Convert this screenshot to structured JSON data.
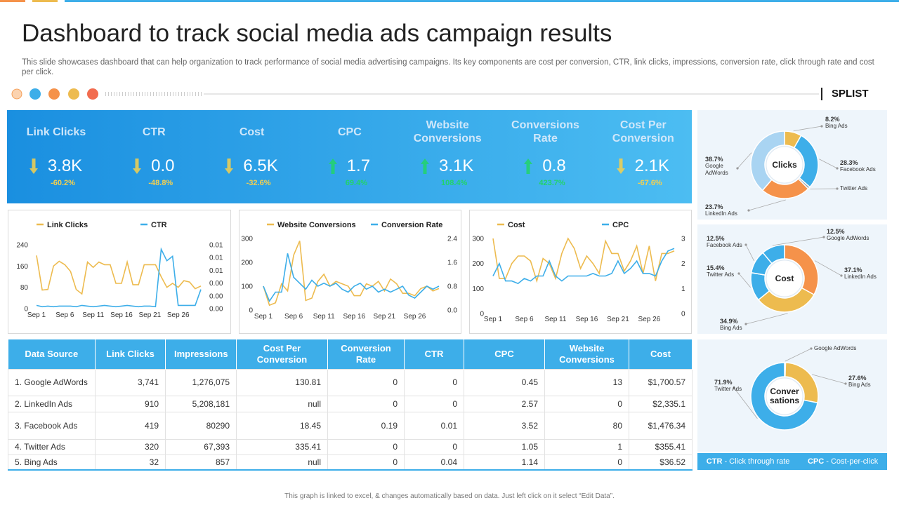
{
  "header": {
    "title": "Dashboard to track social media ads campaign results",
    "subtitle": "This slide showcases dashboard that can help organization to track performance of social media advertising campaigns. Its key components are cost per conversion, CTR, link clicks, impressions, conversion rate, click through rate and cost per click.",
    "brand": "SPLIST"
  },
  "kpis": [
    {
      "label": "Link Clicks",
      "value": "3.8K",
      "change": "-60.2%",
      "trend": "down",
      "color": "#f5d04e"
    },
    {
      "label": "CTR",
      "value": "0.0",
      "change": "-48.8%",
      "trend": "down",
      "color": "#f5d04e"
    },
    {
      "label": "Cost",
      "value": "6.5K",
      "change": "-32.6%",
      "trend": "down",
      "color": "#f5d04e"
    },
    {
      "label": "CPC",
      "value": "1.7",
      "change": "69.4%",
      "trend": "up",
      "color": "#22d36a"
    },
    {
      "label": "Website Conversions",
      "value": "3.1K",
      "change": "108.4%",
      "trend": "up",
      "color": "#22d36a"
    },
    {
      "label": "Conversions Rate",
      "value": "0.8",
      "change": "423.7%",
      "trend": "up",
      "color": "#22d36a"
    },
    {
      "label": "Cost Per Conversion",
      "value": "2.1K",
      "change": "-67.6%",
      "trend": "down",
      "color": "#f5d04e"
    }
  ],
  "chart_data": [
    {
      "type": "line",
      "categories": [
        "Sep 1",
        null,
        null,
        null,
        null,
        "Sep 6",
        null,
        null,
        null,
        null,
        "Sep 11",
        null,
        null,
        null,
        null,
        "Sep 16",
        null,
        null,
        null,
        null,
        "Sep 21",
        null,
        null,
        null,
        null,
        "Sep 26",
        null,
        null,
        null,
        null
      ],
      "series": [
        {
          "name": "Link Clicks",
          "color": "#edbb4f",
          "values": [
            200,
            70,
            72,
            160,
            178,
            165,
            140,
            72,
            55,
            175,
            155,
            175,
            165,
            165,
            95,
            95,
            175,
            90,
            90,
            165,
            165,
            165,
            120,
            80,
            95,
            80,
            105,
            100,
            75,
            85
          ]
        },
        {
          "name": "CTR",
          "color": "#3daee9",
          "axis": "y2",
          "values": [
            0.0005,
            0.0003,
            0.0004,
            0.0003,
            0.0004,
            0.0004,
            0.0004,
            0.0003,
            0.0005,
            0.0004,
            0.0003,
            0.0004,
            0.0005,
            0.0004,
            0.0003,
            0.0004,
            0.0005,
            0.0004,
            0.0003,
            0.0004,
            0.0004,
            0.0003,
            0.0093,
            0.0075,
            0.0082,
            0.0005,
            0.0005,
            0.0005,
            0.0005,
            0.003
          ]
        }
      ],
      "ylim": [
        0,
        240
      ],
      "yticks": [
        0,
        80,
        160,
        240
      ],
      "y2lim": [
        0,
        0.01
      ],
      "y2ticks": [
        {
          "value": 0,
          "label": "0.00"
        },
        {
          "value": 0.002,
          "label": "0.00"
        },
        {
          "value": 0.004,
          "label": "0.00"
        },
        {
          "value": 0.006,
          "label": "0.01"
        },
        {
          "value": 0.008,
          "label": "0.01"
        },
        {
          "value": 0.01,
          "label": "0.01"
        }
      ],
      "grid": false
    },
    {
      "type": "line",
      "categories": [
        "Sep 1",
        null,
        null,
        null,
        null,
        "Sep 6",
        null,
        null,
        null,
        null,
        "Sep 11",
        null,
        null,
        null,
        null,
        "Sep 16",
        null,
        null,
        null,
        null,
        "Sep 21",
        null,
        null,
        null,
        null,
        "Sep 26",
        null,
        null,
        null,
        null
      ],
      "series": [
        {
          "name": "Website Conversions",
          "color": "#edbb4f",
          "values": [
            100,
            20,
            30,
            110,
            80,
            230,
            290,
            40,
            50,
            120,
            150,
            100,
            120,
            110,
            100,
            60,
            60,
            110,
            100,
            120,
            80,
            130,
            110,
            70,
            70,
            60,
            90,
            100,
            80,
            90
          ]
        },
        {
          "name": "Conversion Rate",
          "color": "#3daee9",
          "axis": "y2",
          "values": [
            0.8,
            0.3,
            0.6,
            0.6,
            1.9,
            1.1,
            0.9,
            0.7,
            1.0,
            0.8,
            0.9,
            0.8,
            0.9,
            0.7,
            0.6,
            0.8,
            0.9,
            0.7,
            0.8,
            0.6,
            0.7,
            0.6,
            0.7,
            0.8,
            0.5,
            0.4,
            0.6,
            0.8,
            0.7,
            0.8
          ]
        }
      ],
      "ylim": [
        0,
        300
      ],
      "yticks": [
        0,
        100,
        200,
        300
      ],
      "y2lim": [
        0,
        2.4
      ],
      "y2ticks": [
        {
          "value": 0,
          "label": "0.0"
        },
        0.8,
        1.6,
        2.4
      ],
      "grid": false
    },
    {
      "type": "line",
      "categories": [
        "Sep 1",
        null,
        null,
        null,
        null,
        "Sep 6",
        null,
        null,
        null,
        null,
        "Sep 11",
        null,
        null,
        null,
        null,
        "Sep 16",
        null,
        null,
        null,
        null,
        "Sep 21",
        null,
        null,
        null,
        null,
        "Sep 26",
        null,
        null,
        null,
        null
      ],
      "series": [
        {
          "name": "Cost",
          "color": "#edbb4f",
          "values": [
            300,
            140,
            140,
            200,
            230,
            230,
            210,
            130,
            220,
            200,
            140,
            240,
            300,
            260,
            180,
            230,
            200,
            160,
            290,
            240,
            240,
            170,
            210,
            270,
            160,
            270,
            130,
            240,
            240,
            250
          ]
        },
        {
          "name": "CPC",
          "color": "#3daee9",
          "axis": "y2",
          "values": [
            1.5,
            2,
            1.3,
            1.3,
            1.2,
            1.4,
            1.3,
            1.5,
            1.5,
            2.1,
            1.5,
            1.3,
            1.5,
            1.5,
            1.5,
            1.5,
            1.6,
            1.5,
            1.5,
            1.6,
            2.1,
            1.6,
            1.8,
            2.1,
            1.6,
            1.6,
            1.5,
            2.1,
            2.5,
            2.6
          ]
        }
      ],
      "ylim": [
        0,
        300
      ],
      "yticks": [
        0,
        100,
        200,
        300
      ],
      "y2lim": [
        0,
        3
      ],
      "y2ticks": [
        0,
        1,
        2,
        3
      ],
      "grid": false
    },
    {
      "type": "donut",
      "title": "Clicks",
      "categories": [
        "Bing Ads",
        "Facebook Ads",
        "Twitter Ads",
        "LinkedIn Ads",
        "Google AdWords"
      ],
      "values": [
        8.2,
        28.3,
        1.1,
        23.7,
        38.7
      ],
      "value_labels": [
        "8.2%",
        "28.3%",
        null,
        "23.7%",
        "38.7%"
      ],
      "colors": [
        "#edbb4f",
        "#3daee9",
        "#9aa5ad",
        "#f5924a",
        "#a9d4f2"
      ]
    },
    {
      "type": "donut",
      "title": "Cost",
      "categories": [
        "LinkedIn Ads",
        "Bing Ads",
        "Twitter Ads",
        "Facebook Ads",
        "Google AdWords"
      ],
      "values": [
        37.1,
        34.9,
        15.4,
        12.5,
        12.5
      ],
      "value_labels": [
        "37.1%",
        "34.9%",
        "15.4%",
        "12.5%",
        "12.5%"
      ],
      "colors": [
        "#f5924a",
        "#edbb4f",
        "#3daee9",
        "#3daee9",
        "#3daee9"
      ]
    },
    {
      "type": "donut",
      "title": "Conver sations",
      "categories": [
        "Google AdWords",
        "Bing Ads",
        "Twitter Ads"
      ],
      "values": [
        0.5,
        27.6,
        71.9
      ],
      "value_labels": [
        null,
        "27.6%",
        "71.9%"
      ],
      "colors": [
        "#a9d4f2",
        "#edbb4f",
        "#3daee9"
      ]
    }
  ],
  "table": {
    "columns": [
      "Data Source",
      "Link Clicks",
      "Impressions",
      "Cost Per Conversion",
      "Conversion Rate",
      "CTR",
      "CPC",
      "Website Conversions",
      "Cost"
    ],
    "rows": [
      [
        "1. Google AdWords",
        "3,741",
        "1,276,075",
        "130.81",
        "0",
        "0",
        "0.45",
        "13",
        "$1,700.57"
      ],
      [
        "2. LinkedIn Ads",
        "910",
        "5,208,181",
        "null",
        "0",
        "0",
        "2.57",
        "0",
        "$2,335.1"
      ],
      [
        "3. Facebook Ads",
        "419",
        "80290",
        "18.45",
        "0.19",
        "0.01",
        "3.52",
        "80",
        "$1,476.34"
      ],
      [
        "4. Twitter Ads",
        "320",
        "67,393",
        "335.41",
        "0",
        "0",
        "1.05",
        "1",
        "$355.41"
      ],
      [
        "5. Bing Ads",
        "32",
        "857",
        "null",
        "0",
        "0.04",
        "1.14",
        "0",
        "$36.52"
      ]
    ]
  },
  "legend_notes": [
    {
      "term": "CTR",
      "text": "- Click through rate"
    },
    {
      "term": "CPC",
      "text": "- Cost-per-click"
    }
  ],
  "footer": "This graph is linked to excel, & changes automatically based on data. Just left click on it select “Edit Data”."
}
